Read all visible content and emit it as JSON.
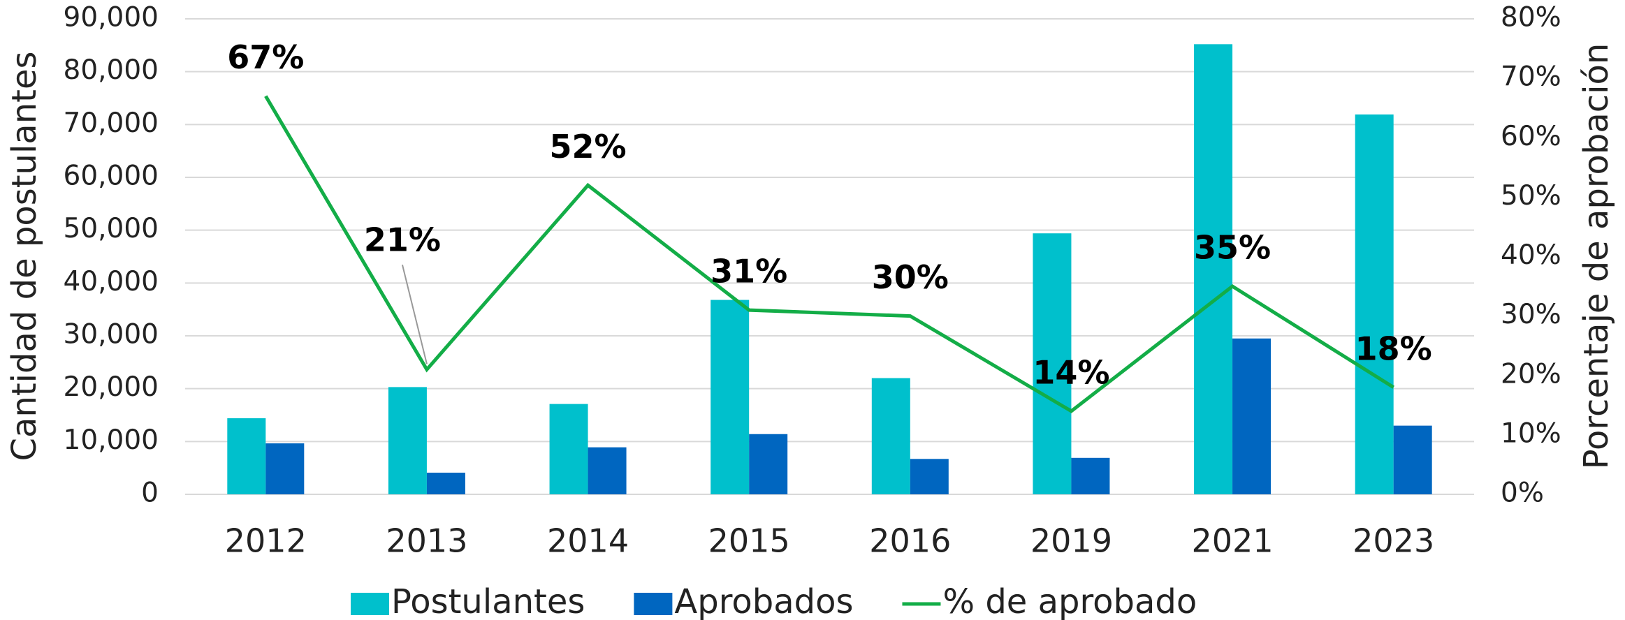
{
  "chart_data": {
    "type": "bar",
    "categories": [
      "2012",
      "2013",
      "2014",
      "2015",
      "2016",
      "2019",
      "2021",
      "2023"
    ],
    "series": [
      {
        "name": "Postulantes",
        "color": "#00c0cc",
        "values": [
          14400,
          20300,
          17100,
          36800,
          22000,
          49400,
          85200,
          71900
        ]
      },
      {
        "name": "Aprobados",
        "color": "#0066c0",
        "values": [
          9650,
          4100,
          8900,
          11400,
          6700,
          6900,
          29500,
          13000
        ]
      },
      {
        "name": "% de aprobado",
        "type": "line",
        "axis": "y2",
        "color": "#13ad47",
        "values": [
          67,
          21,
          52,
          31,
          30,
          14,
          35,
          18
        ],
        "value_labels": [
          "67%",
          "21%",
          "52%",
          "31%",
          "30%",
          "14%",
          "35%",
          "18%"
        ]
      }
    ],
    "y_label": "Cantidad de postulantes",
    "y2_label": "Porcentaje de aprobación",
    "ylim": [
      0,
      90000
    ],
    "yticks": [
      0,
      {
        "value": 10000,
        "label": "10,000"
      },
      {
        "value": 20000,
        "label": "20,000"
      },
      {
        "value": 30000,
        "label": "30,000"
      },
      {
        "value": 40000,
        "label": "40,000"
      },
      {
        "value": 50000,
        "label": "50,000"
      },
      {
        "value": 60000,
        "label": "60,000"
      },
      {
        "value": 70000,
        "label": "70,000"
      },
      {
        "value": 80000,
        "label": "80,000"
      },
      {
        "value": 90000,
        "label": "90,000"
      }
    ],
    "y2lim": [
      0,
      80
    ],
    "y2ticks": [
      {
        "value": 0,
        "label": "0%"
      },
      {
        "value": 10,
        "label": "10%"
      },
      {
        "value": 20,
        "label": "20%"
      },
      {
        "value": 30,
        "label": "30%"
      },
      {
        "value": 40,
        "label": "40%"
      },
      {
        "value": 50,
        "label": "50%"
      },
      {
        "value": 60,
        "label": "60%"
      },
      {
        "value": 70,
        "label": "70%"
      },
      {
        "value": 80,
        "label": "80%"
      }
    ],
    "grid": true,
    "legend": "bottom"
  }
}
